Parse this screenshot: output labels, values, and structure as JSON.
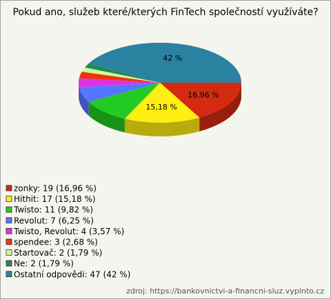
{
  "chart_data": {
    "type": "pie3d",
    "title": "Pokud ano, služeb které/kterých FinTech společností využíváte?",
    "categories": [
      "zonky",
      "Hithit",
      "Twisto",
      "Revolut",
      "Twisto, Revolut",
      "spendee",
      "Startovač",
      "Ne",
      "Ostatní odpovědi"
    ],
    "legend_labels": [
      "zonky: 19 (16,96 %)",
      "Hithit: 17 (15,18 %)",
      "Twisto: 11 (9,82 %)",
      "Revolut: 7 (6,25 %)",
      "Twisto, Revolut: 4 (3,57 %)",
      "spendee: 3 (2,68 %)",
      "Startovač: 2 (1,79 %)",
      "Ne: 2 (1,79 %)",
      "Ostatní odpovědi: 47 (42 %)"
    ],
    "values": [
      16.96,
      15.18,
      9.82,
      6.25,
      3.57,
      2.68,
      1.79,
      1.79,
      42
    ],
    "value_labels": [
      "16,96 %",
      "15,18 %",
      null,
      null,
      null,
      null,
      null,
      null,
      "42 %"
    ],
    "colors": [
      "#d42a10",
      "#ffee11",
      "#22cc22",
      "#5577ff",
      "#dd33dd",
      "#ee3311",
      "#ccff99",
      "#228855",
      "#2a82a0"
    ],
    "source": "zdroj: https://bankovnictvi-a-financni-sluz.vyplnto.cz"
  }
}
